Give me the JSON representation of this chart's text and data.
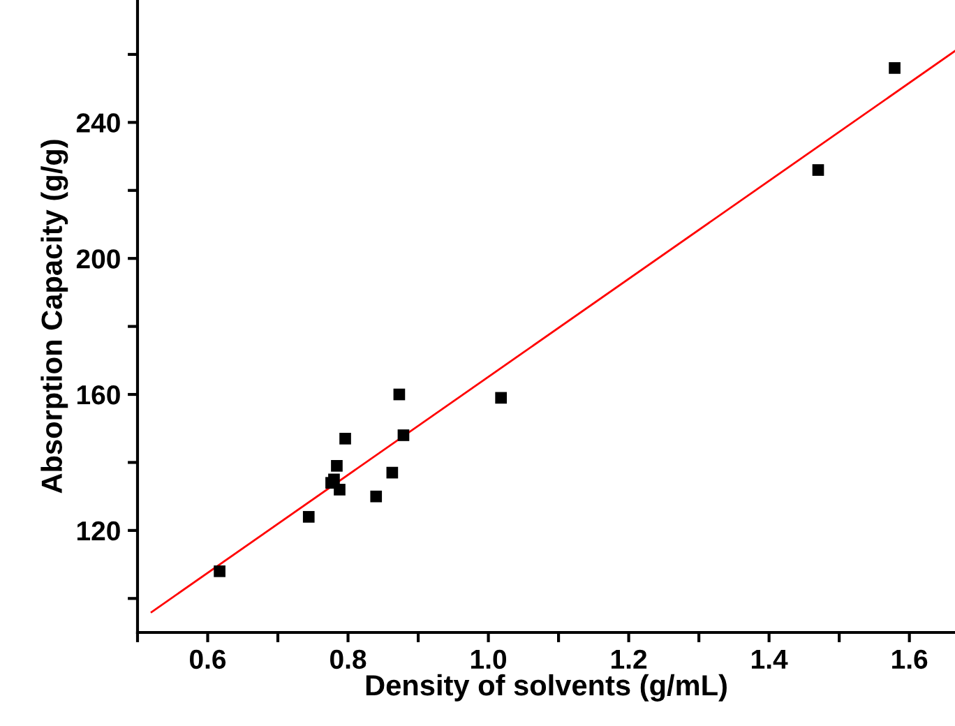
{
  "chart_data": {
    "type": "scatter",
    "xlabel": "Density of solvents (g/mL)",
    "ylabel": "Absorption Capacity (g/g)",
    "xlim": [
      0.5,
      1.665
    ],
    "ylim": [
      90,
      276
    ],
    "xticks": [
      {
        "value": 0.5,
        "label": null
      },
      0.6,
      {
        "value": 0.7,
        "label": null
      },
      0.8,
      {
        "value": 0.9,
        "label": null
      },
      {
        "value": 1.0,
        "label": "1.0"
      },
      {
        "value": 1.1,
        "label": null
      },
      1.2,
      {
        "value": 1.3,
        "label": null
      },
      1.4,
      {
        "value": 1.5,
        "label": null
      },
      1.6
    ],
    "yticks": [
      {
        "value": 100,
        "label": null
      },
      120,
      {
        "value": 140,
        "label": null
      },
      160,
      {
        "value": 180,
        "label": null
      },
      200,
      {
        "value": 220,
        "label": null
      },
      240,
      {
        "value": 260,
        "label": null
      }
    ],
    "grid": false,
    "legend": false,
    "marker": "square",
    "series": [
      {
        "color": "#000000",
        "x": [
          0.617,
          0.744,
          0.776,
          0.78,
          0.784,
          0.788,
          0.796,
          0.84,
          0.863,
          0.873,
          0.879,
          1.018,
          1.47,
          1.579
        ],
        "values": [
          108,
          124,
          134,
          135,
          139,
          132,
          147,
          130,
          137,
          160,
          148,
          159,
          226,
          256
        ]
      },
      {
        "type": "line",
        "color": "#ff0000",
        "marker": "none",
        "line_style": "solid",
        "x": [
          0.52,
          1.665
        ],
        "values": [
          96,
          261
        ]
      }
    ]
  }
}
